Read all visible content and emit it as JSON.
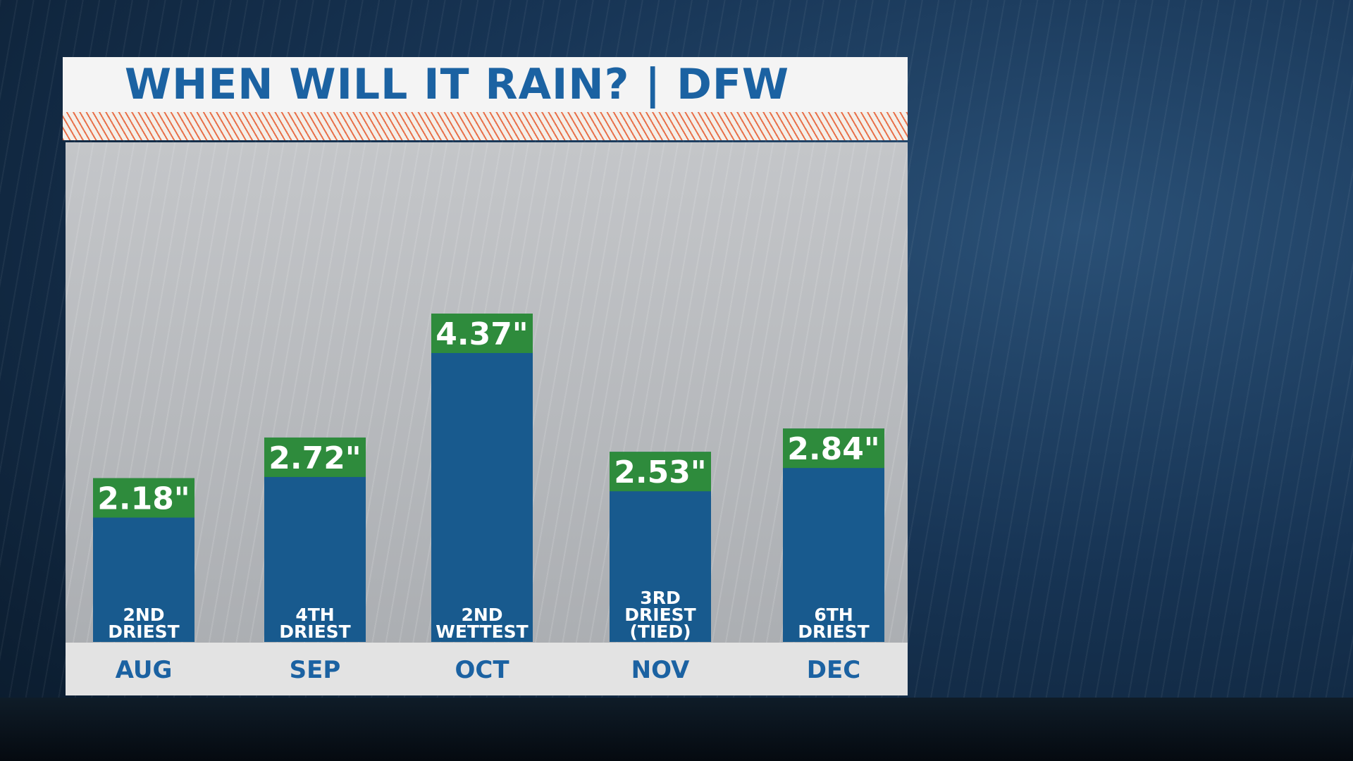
{
  "chart_data": {
    "type": "bar",
    "title": "WHEN WILL IT RAIN? | DFW",
    "categories": [
      "AUG",
      "SEP",
      "OCT",
      "NOV",
      "DEC"
    ],
    "values": [
      2.18,
      2.72,
      4.37,
      2.53,
      2.84
    ],
    "value_labels": [
      "2.18\"",
      "2.72\"",
      "4.37\"",
      "2.53\"",
      "2.84\""
    ],
    "annotations": [
      [
        "2ND",
        "DRIEST"
      ],
      [
        "4TH",
        "DRIEST"
      ],
      [
        "2ND",
        "WETTEST"
      ],
      [
        "3RD",
        "DRIEST",
        "(TIED)"
      ],
      [
        "6TH",
        "DRIEST"
      ]
    ],
    "color": "#185a8e",
    "label_color": "#2e8b3c"
  }
}
